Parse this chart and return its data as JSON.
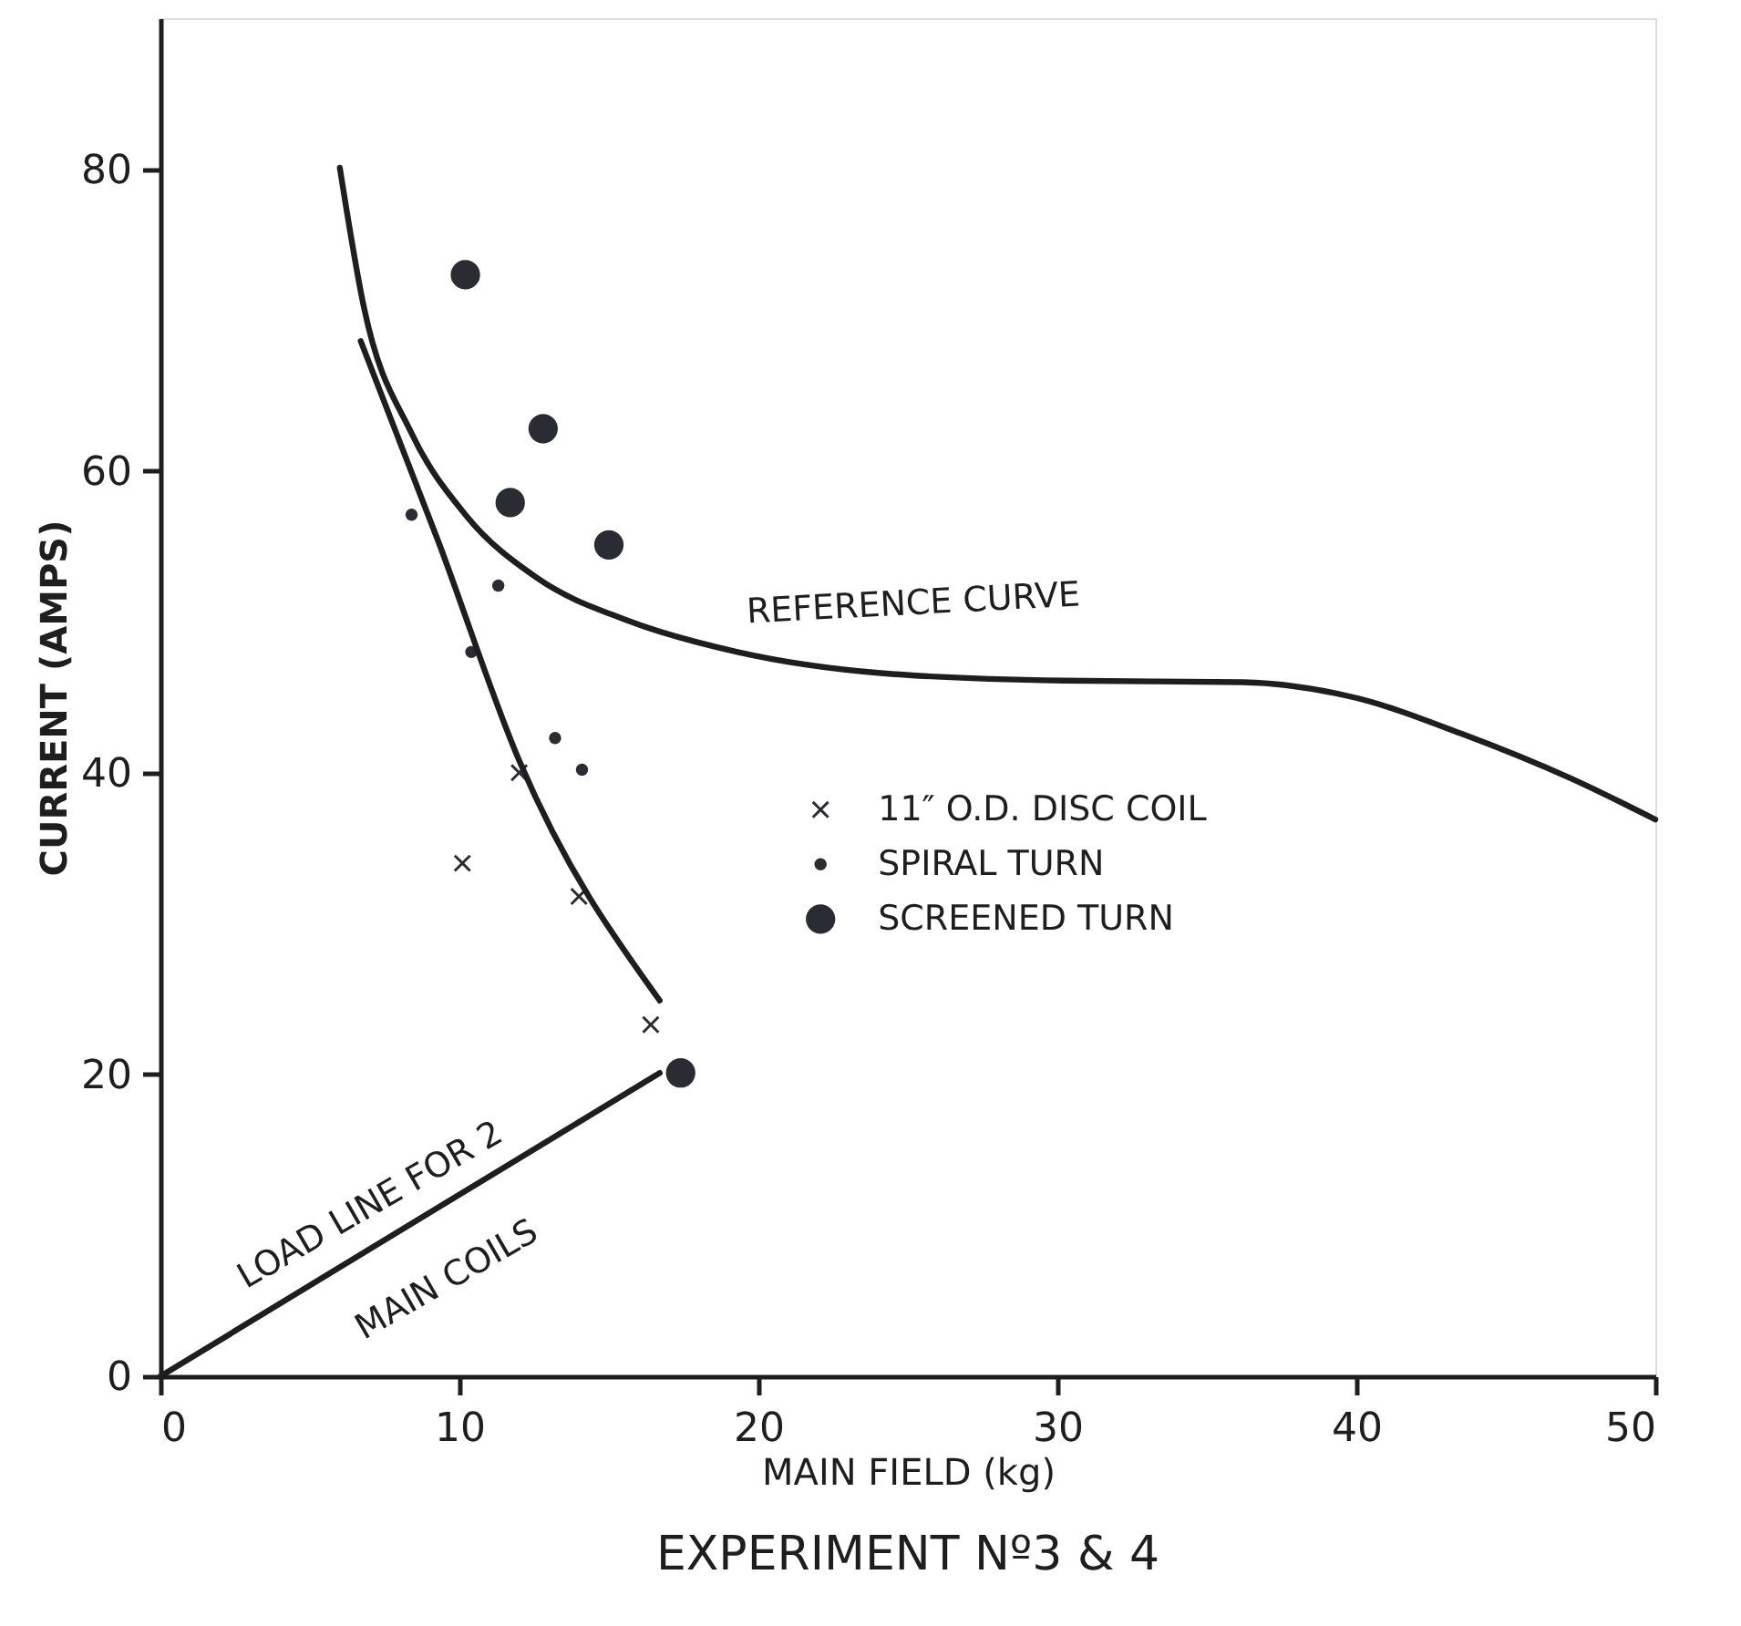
{
  "chart_data": {
    "type": "scatter",
    "title": "EXPERIMENT    Nº3 & 4",
    "xlabel": "MAIN FIELD (kg)",
    "ylabel": "CURRENT (AMPS)",
    "xlim": [
      0,
      50
    ],
    "ylim": [
      0,
      90
    ],
    "xticks": [
      0,
      10,
      20,
      30,
      40,
      50
    ],
    "yticks": [
      0,
      20,
      40,
      60,
      80
    ],
    "grid": false,
    "legend": "right",
    "series": [
      {
        "name": "11″ O.D. DISC COIL",
        "marker": "cross",
        "color": "#2b2b33",
        "x": [
          12.0,
          10.1,
          14.0,
          16.4
        ],
        "values": [
          40.0,
          34.0,
          31.8,
          23.3
        ]
      },
      {
        "name": "SPIRAL TURN",
        "marker": "circle",
        "color": "#2b2b33",
        "x": [
          8.4,
          10.4,
          11.3,
          13.2,
          14.1
        ],
        "values": [
          57.1,
          48.0,
          52.4,
          42.3,
          40.2
        ]
      },
      {
        "name": "SCREENED TURN",
        "marker": "circle",
        "color": "#2b2b33",
        "x": [
          10.2,
          12.8,
          11.7,
          15.0,
          17.4
        ],
        "values": [
          73.0,
          62.8,
          57.9,
          55.1,
          20.1
        ]
      },
      {
        "type": "line",
        "color": "#1e1e1e",
        "x": [
          6.0,
          6.8,
          8.4,
          10.2,
          12.6,
          15.6,
          19.3,
          24.1,
          30.2,
          36.2,
          39.9,
          43.5,
          47.2,
          50.0
        ],
        "values": [
          80.1,
          70.9,
          62.5,
          57.1,
          52.9,
          50.1,
          48.0,
          46.6,
          46.1,
          46.0,
          45.0,
          42.6,
          39.6,
          36.9
        ]
      },
      {
        "type": "line",
        "color": "#1e1e1e",
        "x": [
          6.7,
          9.3,
          12.0,
          16.7
        ],
        "values": [
          68.6,
          55.3,
          40.8,
          24.9
        ]
      },
      {
        "type": "line",
        "color": "#1e1e1e",
        "x": [
          0,
          16.7
        ],
        "values": [
          0,
          20.1
        ]
      }
    ],
    "annotations": [
      "REFERENCE CURVE",
      "LOAD LINE FOR 2",
      "MAIN COILS"
    ]
  }
}
